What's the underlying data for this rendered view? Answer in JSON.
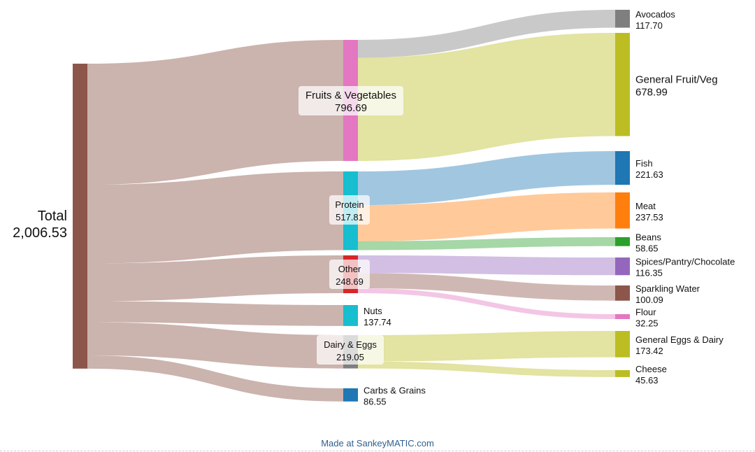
{
  "chart_data": {
    "type": "sankey",
    "credit": "Made at SankeyMATIC.com",
    "nodes": [
      {
        "id": "total",
        "name": "Total",
        "value": 2006.53,
        "display": "2,006.53",
        "color": "#8c564b",
        "label_pos": "left"
      },
      {
        "id": "fv",
        "name": "Fruits & Vegetables",
        "value": 796.69,
        "display": "796.69",
        "color": "#e377c2",
        "label_pos": "boxed"
      },
      {
        "id": "protein",
        "name": "Protein",
        "value": 517.81,
        "display": "517.81",
        "color": "#17becf",
        "label_pos": "boxed"
      },
      {
        "id": "other",
        "name": "Other",
        "value": 248.69,
        "display": "248.69",
        "color": "#d62728",
        "label_pos": "boxed"
      },
      {
        "id": "nuts",
        "name": "Nuts",
        "value": 137.74,
        "display": "137.74",
        "color": "#17becf",
        "label_pos": "right"
      },
      {
        "id": "dairy",
        "name": "Dairy & Eggs",
        "value": 219.05,
        "display": "219.05",
        "color": "#7f7f7f",
        "label_pos": "boxed"
      },
      {
        "id": "carbs",
        "name": "Carbs & Grains",
        "value": 86.55,
        "display": "86.55",
        "color": "#1f77b4",
        "label_pos": "right"
      },
      {
        "id": "avo",
        "name": "Avocados",
        "value": 117.7,
        "display": "117.70",
        "color": "#7f7f7f",
        "label_pos": "right"
      },
      {
        "id": "gfv",
        "name": "General Fruit/Veg",
        "value": 678.99,
        "display": "678.99",
        "color": "#bcbd22",
        "label_pos": "right"
      },
      {
        "id": "fish",
        "name": "Fish",
        "value": 221.63,
        "display": "221.63",
        "color": "#1f77b4",
        "label_pos": "right"
      },
      {
        "id": "meat",
        "name": "Meat",
        "value": 237.53,
        "display": "237.53",
        "color": "#ff7f0e",
        "label_pos": "right"
      },
      {
        "id": "beans",
        "name": "Beans",
        "value": 58.65,
        "display": "58.65",
        "color": "#2ca02c",
        "label_pos": "right"
      },
      {
        "id": "spices",
        "name": "Spices/Pantry/Chocolate",
        "value": 116.35,
        "display": "116.35",
        "color": "#9467bd",
        "label_pos": "right"
      },
      {
        "id": "water",
        "name": "Sparkling Water",
        "value": 100.09,
        "display": "100.09",
        "color": "#8c564b",
        "label_pos": "right"
      },
      {
        "id": "flour",
        "name": "Flour",
        "value": 32.25,
        "display": "32.25",
        "color": "#e377c2",
        "label_pos": "right"
      },
      {
        "id": "ged",
        "name": "General Eggs & Dairy",
        "value": 173.42,
        "display": "173.42",
        "color": "#bcbd22",
        "label_pos": "right"
      },
      {
        "id": "cheese",
        "name": "Cheese",
        "value": 45.63,
        "display": "45.63",
        "color": "#bcbd22",
        "label_pos": "right"
      }
    ],
    "links": [
      {
        "source": "total",
        "target": "fv",
        "value": 796.69
      },
      {
        "source": "total",
        "target": "protein",
        "value": 517.81
      },
      {
        "source": "total",
        "target": "other",
        "value": 248.69
      },
      {
        "source": "total",
        "target": "nuts",
        "value": 137.74
      },
      {
        "source": "total",
        "target": "dairy",
        "value": 219.05
      },
      {
        "source": "total",
        "target": "carbs",
        "value": 86.55
      },
      {
        "source": "fv",
        "target": "avo",
        "value": 117.7
      },
      {
        "source": "fv",
        "target": "gfv",
        "value": 678.99
      },
      {
        "source": "protein",
        "target": "fish",
        "value": 221.63
      },
      {
        "source": "protein",
        "target": "meat",
        "value": 237.53
      },
      {
        "source": "protein",
        "target": "beans",
        "value": 58.65
      },
      {
        "source": "other",
        "target": "spices",
        "value": 116.35
      },
      {
        "source": "other",
        "target": "water",
        "value": 100.09
      },
      {
        "source": "other",
        "target": "flour",
        "value": 32.25
      },
      {
        "source": "dairy",
        "target": "ged",
        "value": 173.42
      },
      {
        "source": "dairy",
        "target": "cheese",
        "value": 45.63
      }
    ]
  }
}
